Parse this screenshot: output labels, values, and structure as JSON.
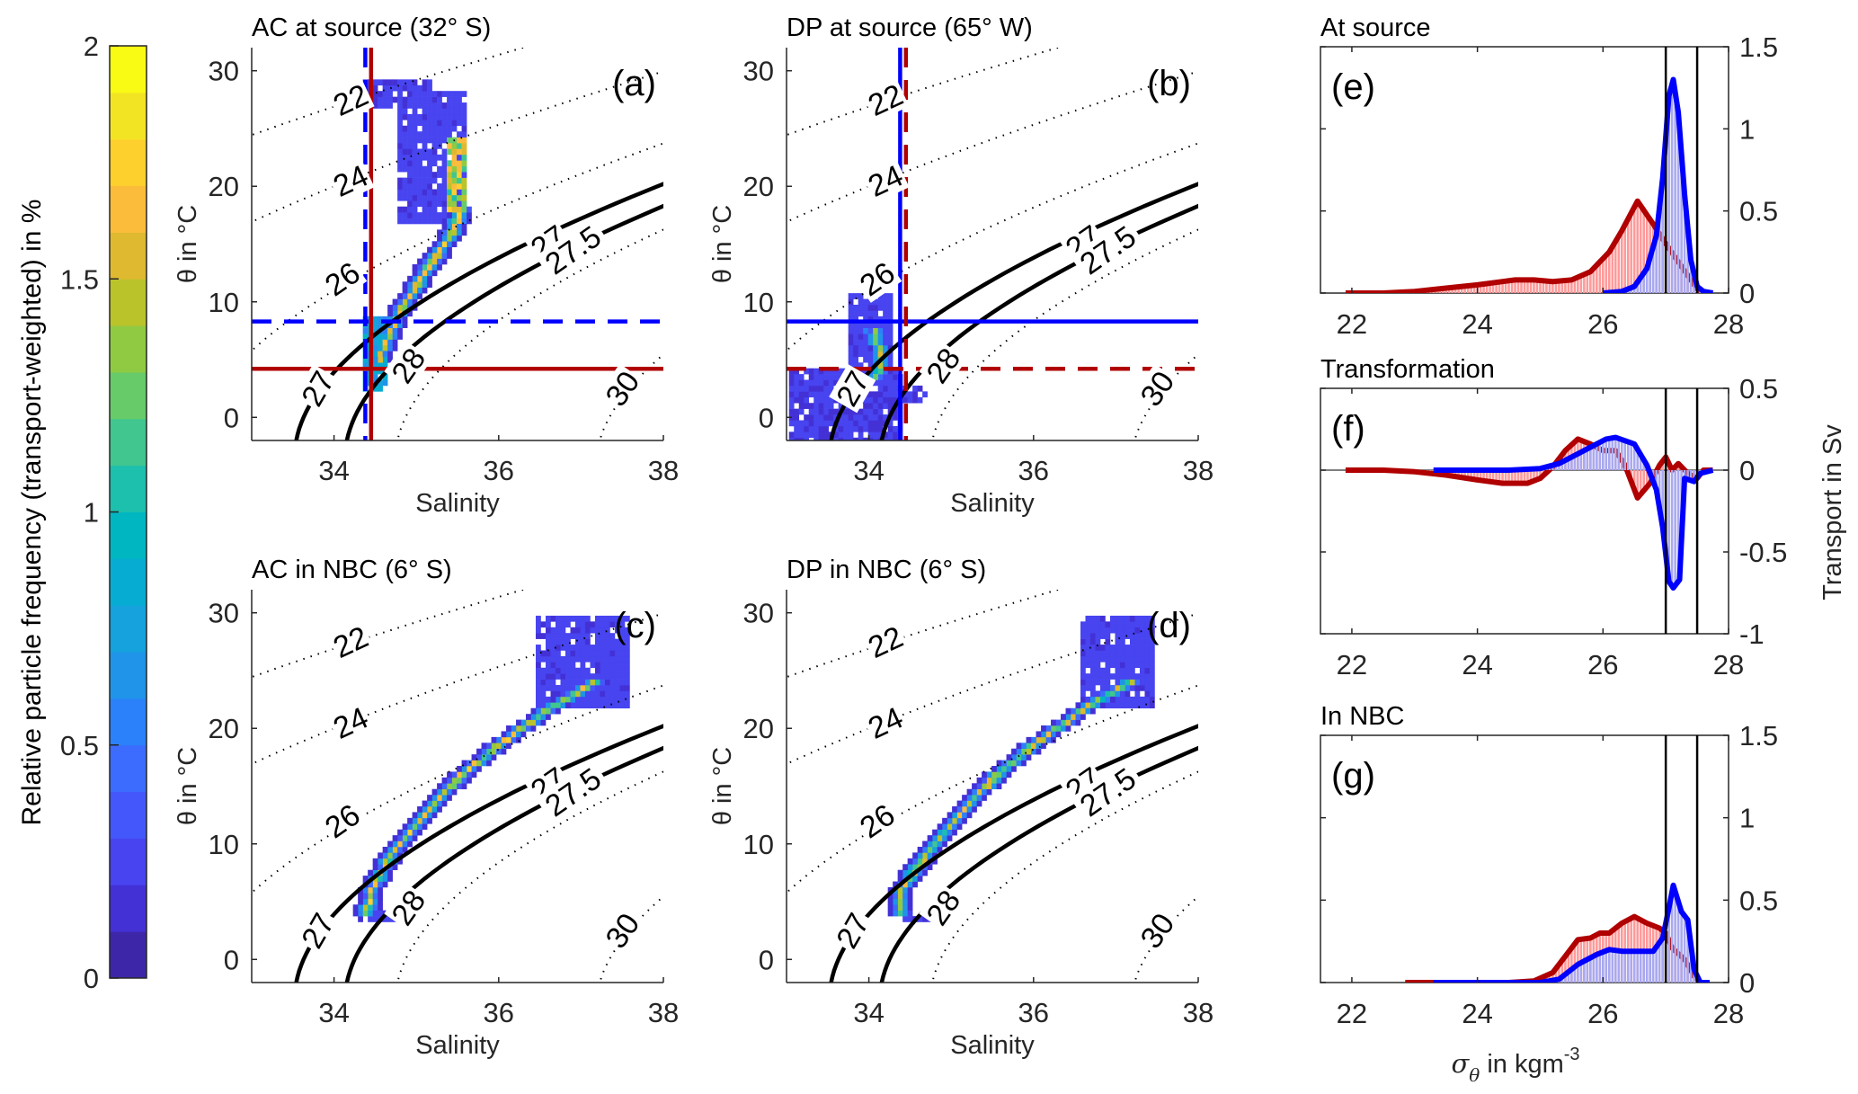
{
  "colors": {
    "ac": "#b00000",
    "dp": "#0000ff",
    "ac_fill": "#ff9a9a",
    "dp_fill": "#a9a9f0",
    "axis": "#262626"
  },
  "colorbar": {
    "label": "Relative particle frequency (transport-weighted) in %",
    "ticks": [
      "0",
      "0.5",
      "1",
      "1.5",
      "2"
    ],
    "range": [
      0,
      2
    ],
    "colors": [
      "#3e26a8",
      "#4331d6",
      "#4744f0",
      "#4457fa",
      "#3b6cfe",
      "#2b81f9",
      "#1f94e9",
      "#15a2dd",
      "#07acd2",
      "#00b6c1",
      "#1dbfad",
      "#41c68f",
      "#67cb6a",
      "#90ca43",
      "#bbc32b",
      "#dfb930",
      "#fbbc3c",
      "#fdd02e",
      "#f3e423",
      "#f9fb14"
    ]
  },
  "chart_data": [
    {
      "id": "a",
      "type": "heatmap",
      "title": "AC at source (32° S)",
      "panel_label": "(a)",
      "xlabel": "Salinity",
      "ylabel": "θ in °C",
      "xlim": [
        33,
        38
      ],
      "ylim": [
        -2,
        32
      ],
      "xticks": [
        "34",
        "36",
        "38"
      ],
      "yticks": [
        "0",
        "10",
        "20",
        "30"
      ],
      "isopycnal_labels": [
        "22",
        "24",
        "26",
        "27",
        "27.5",
        "28",
        "30",
        "27"
      ],
      "ref_lines": {
        "ac_vertical_S": 34.45,
        "ac_horizontal_theta": 4.2,
        "dp_vertical_S": 34.38,
        "dp_horizontal_theta": 8.3,
        "ac_style": "solid",
        "dp_style": "dashed"
      },
      "blobs": [
        {
          "s": [
            34.35,
            34.6
          ],
          "t": [
            2.5,
            8.5
          ],
          "level": 0.35
        },
        {
          "s": [
            34.4,
            35.2
          ],
          "t": [
            27.0,
            29.0
          ],
          "level": 0.08
        },
        {
          "s": [
            34.8,
            35.6
          ],
          "t": [
            17.0,
            28.0
          ],
          "level": 0.1
        },
        {
          "s": [
            35.4,
            35.6
          ],
          "t": [
            18,
            24
          ],
          "level": 0.7
        }
      ],
      "ridge": [
        [
          34.55,
          5
        ],
        [
          34.8,
          9
        ],
        [
          35.1,
          12.5
        ],
        [
          35.45,
          16
        ],
        [
          35.55,
          18
        ]
      ]
    },
    {
      "id": "b",
      "type": "heatmap",
      "title": "DP at source (65°  W)",
      "panel_label": "(b)",
      "xlabel": "Salinity",
      "ylabel": "θ in °C",
      "xlim": [
        33,
        38
      ],
      "ylim": [
        -2,
        32
      ],
      "xticks": [
        "34",
        "36",
        "38"
      ],
      "yticks": [
        "0",
        "10",
        "20",
        "30"
      ],
      "isopycnal_labels": [
        "22",
        "24",
        "26",
        "27",
        "27.5",
        "28",
        "30",
        "27"
      ],
      "ref_lines": {
        "ac_vertical_S": 34.45,
        "ac_horizontal_theta": 4.2,
        "dp_vertical_S": 34.38,
        "dp_horizontal_theta": 8.3,
        "ac_style": "dashed",
        "dp_style": "solid"
      },
      "blobs": [
        {
          "s": [
            33.05,
            34.4
          ],
          "t": [
            -2,
            4
          ],
          "level": 0.08
        },
        {
          "s": [
            33.8,
            34.3
          ],
          "t": [
            3,
            10.5
          ],
          "level": 0.1
        },
        {
          "s": [
            34.3,
            34.7
          ],
          "t": [
            1.5,
            2.5
          ],
          "level": 0.08
        }
      ],
      "ridge": [
        [
          34.1,
          3.5
        ],
        [
          34.15,
          5
        ],
        [
          34.1,
          6.5
        ],
        [
          34.05,
          7.5
        ]
      ]
    },
    {
      "id": "c",
      "type": "heatmap",
      "title": "AC in NBC (6° S)",
      "panel_label": "(c)",
      "xlabel": "Salinity",
      "ylabel": "θ in °C",
      "xlim": [
        33,
        38
      ],
      "ylim": [
        -2,
        32
      ],
      "xticks": [
        "34",
        "36",
        "38"
      ],
      "yticks": [
        "0",
        "10",
        "20",
        "30"
      ],
      "isopycnal_labels": [
        "22",
        "24",
        "26",
        "27",
        "27.5",
        "28",
        "30",
        "27"
      ],
      "blobs": [
        {
          "s": [
            36.5,
            37.6
          ],
          "t": [
            22,
            29.5
          ],
          "level": 0.1
        },
        {
          "s": [
            34.3,
            34.75
          ],
          "t": [
            3.5,
            4.2
          ],
          "level": 0.1
        }
      ],
      "ridge": [
        [
          34.4,
          4
        ],
        [
          34.45,
          6
        ],
        [
          34.7,
          9
        ],
        [
          35.1,
          12.5
        ],
        [
          35.5,
          15.5
        ],
        [
          36.0,
          18.5
        ],
        [
          36.6,
          21.5
        ],
        [
          37.2,
          24
        ]
      ]
    },
    {
      "id": "d",
      "type": "heatmap",
      "title": "DP in NBC (6° S)",
      "panel_label": "(d)",
      "xlabel": "Salinity",
      "ylabel": "θ in °C",
      "xlim": [
        33,
        38
      ],
      "ylim": [
        -2,
        32
      ],
      "xticks": [
        "34",
        "36",
        "38"
      ],
      "yticks": [
        "0",
        "10",
        "20",
        "30"
      ],
      "isopycnal_labels": [
        "22",
        "24",
        "26",
        "27",
        "27.5",
        "28",
        "30",
        "27"
      ],
      "blobs": [
        {
          "s": [
            36.6,
            37.5
          ],
          "t": [
            22,
            29.5
          ],
          "level": 0.1
        },
        {
          "s": [
            34.35,
            34.8
          ],
          "t": [
            3.5,
            4.2
          ],
          "level": 0.1
        }
      ],
      "ridge": [
        [
          34.35,
          4
        ],
        [
          34.4,
          6
        ],
        [
          34.7,
          9
        ],
        [
          35.1,
          12.5
        ],
        [
          35.5,
          15.5
        ],
        [
          36.0,
          18.5
        ],
        [
          36.6,
          21.5
        ],
        [
          37.2,
          24
        ]
      ]
    },
    {
      "id": "e",
      "type": "area",
      "title": "At source",
      "panel_label": "(e)",
      "xlim": [
        21.5,
        28
      ],
      "ylim": [
        0,
        1.5
      ],
      "xticks": [
        "22",
        "24",
        "26",
        "28"
      ],
      "yticks": [
        "0",
        "0.5",
        "1",
        "1.5"
      ],
      "vlines": [
        27.0,
        27.5
      ],
      "series": [
        {
          "name": "AC",
          "x": [
            21.9,
            22.5,
            23.0,
            23.5,
            24.0,
            24.4,
            24.6,
            24.9,
            25.2,
            25.5,
            25.8,
            26.1,
            26.3,
            26.55,
            26.8,
            27.0,
            27.2,
            27.4,
            27.55,
            27.7
          ],
          "y": [
            0,
            0,
            0.01,
            0.03,
            0.05,
            0.07,
            0.08,
            0.08,
            0.07,
            0.08,
            0.13,
            0.25,
            0.38,
            0.56,
            0.42,
            0.3,
            0.19,
            0.08,
            0.0,
            0.0
          ]
        },
        {
          "name": "DP",
          "x": [
            26.0,
            26.3,
            26.5,
            26.7,
            26.85,
            26.95,
            27.05,
            27.12,
            27.2,
            27.3,
            27.4,
            27.5,
            27.6,
            27.75
          ],
          "y": [
            0,
            0.01,
            0.04,
            0.15,
            0.35,
            0.7,
            1.2,
            1.3,
            1.1,
            0.6,
            0.2,
            0.04,
            0.01,
            0.0
          ]
        }
      ]
    },
    {
      "id": "f",
      "type": "area",
      "title": "Transformation",
      "panel_label": "(f)",
      "xlim": [
        21.5,
        28
      ],
      "ylim": [
        -1,
        0.5
      ],
      "xticks": [
        "22",
        "24",
        "26",
        "28"
      ],
      "yticks": [
        "-1",
        "-0.5",
        "0",
        "0.5"
      ],
      "vlines": [
        27.0,
        27.5
      ],
      "series": [
        {
          "name": "AC",
          "x": [
            21.9,
            22.5,
            23.0,
            23.5,
            24.0,
            24.4,
            24.8,
            25.0,
            25.2,
            25.4,
            25.6,
            25.8,
            26.0,
            26.2,
            26.35,
            26.55,
            26.75,
            26.9,
            27.0,
            27.1,
            27.2,
            27.35,
            27.5,
            27.6,
            27.75
          ],
          "y": [
            0,
            0,
            -0.01,
            -0.03,
            -0.06,
            -0.08,
            -0.08,
            -0.05,
            0.02,
            0.12,
            0.19,
            0.16,
            0.12,
            0.12,
            0.03,
            -0.17,
            -0.08,
            0.03,
            0.08,
            0.0,
            0.04,
            -0.02,
            -0.05,
            0.0,
            0.0
          ]
        },
        {
          "name": "DP",
          "x": [
            23.3,
            24.0,
            24.5,
            25.0,
            25.3,
            25.6,
            25.85,
            26.05,
            26.2,
            26.5,
            26.7,
            26.85,
            26.95,
            27.05,
            27.12,
            27.22,
            27.3,
            27.45,
            27.55,
            27.75
          ],
          "y": [
            0,
            0,
            0,
            0.01,
            0.04,
            0.1,
            0.15,
            0.19,
            0.2,
            0.16,
            0.03,
            -0.12,
            -0.35,
            -0.68,
            -0.72,
            -0.67,
            -0.05,
            -0.07,
            -0.02,
            0.0
          ]
        }
      ]
    },
    {
      "id": "g",
      "type": "area",
      "title": "In NBC",
      "panel_label": "(g)",
      "xlabel": "σθ in kgm-3",
      "xlim": [
        21.5,
        28
      ],
      "ylim": [
        0,
        1.5
      ],
      "xticks": [
        "22",
        "24",
        "26",
        "28"
      ],
      "yticks": [
        "0",
        "0.5",
        "1",
        "1.5"
      ],
      "ylabel_right": "Transport in Sv",
      "vlines": [
        27.0,
        27.5
      ],
      "series": [
        {
          "name": "AC",
          "x": [
            22.85,
            23.5,
            24.0,
            24.5,
            24.9,
            25.2,
            25.4,
            25.6,
            25.8,
            25.95,
            26.1,
            26.3,
            26.5,
            26.7,
            26.9,
            27.0,
            27.1,
            27.3,
            27.45,
            27.55,
            27.7
          ],
          "y": [
            0,
            0,
            0,
            0.0,
            0.01,
            0.06,
            0.16,
            0.26,
            0.27,
            0.3,
            0.3,
            0.36,
            0.4,
            0.36,
            0.33,
            0.3,
            0.21,
            0.14,
            0.04,
            0.0,
            0.0
          ]
        },
        {
          "name": "DP",
          "x": [
            23.3,
            24.0,
            24.5,
            25.0,
            25.3,
            25.6,
            25.9,
            26.1,
            26.3,
            26.6,
            26.8,
            26.95,
            27.05,
            27.12,
            27.25,
            27.35,
            27.45,
            27.55,
            27.7
          ],
          "y": [
            0,
            0,
            0,
            0.0,
            0.02,
            0.11,
            0.17,
            0.2,
            0.19,
            0.19,
            0.19,
            0.27,
            0.45,
            0.59,
            0.43,
            0.38,
            0.08,
            0.0,
            0.0
          ]
        }
      ]
    }
  ]
}
